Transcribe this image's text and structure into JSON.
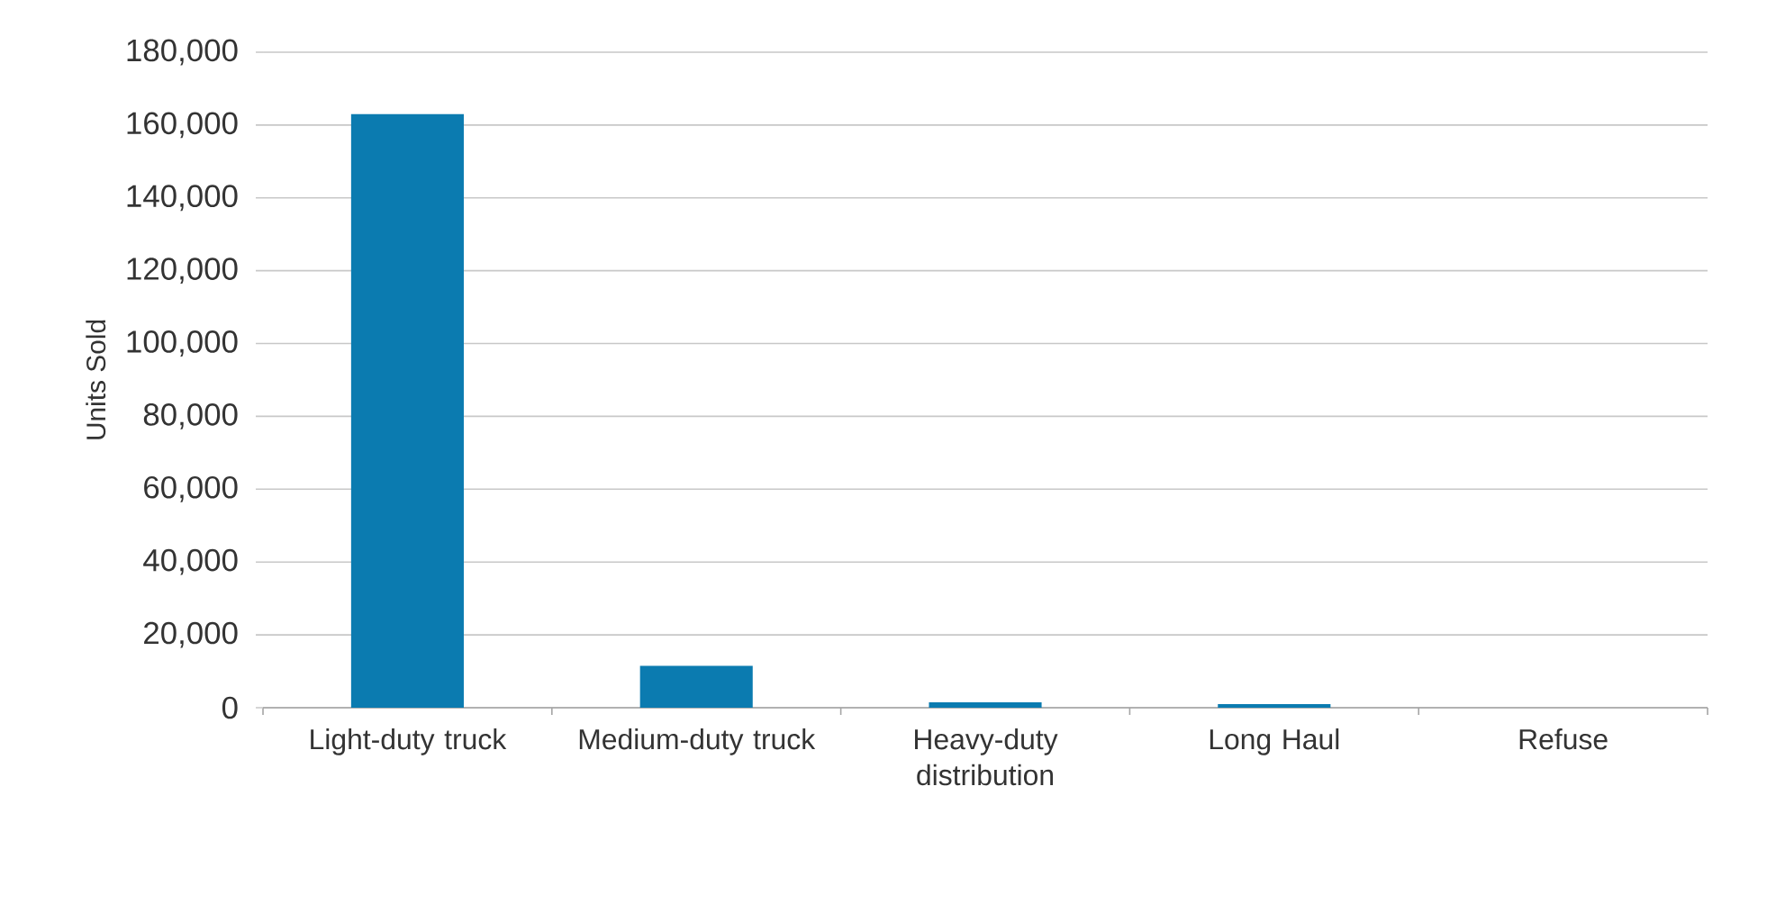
{
  "chart_data": {
    "type": "bar",
    "ylabel": "Units Sold",
    "categories": [
      "Light-duty truck",
      "Medium-duty truck",
      "Heavy-duty distribution",
      "Long Haul",
      "Refuse"
    ],
    "values": [
      163000,
      11500,
      1500,
      1000,
      0
    ],
    "color": "#0b7bb0",
    "ylim": [
      0,
      180000
    ],
    "yticks": [
      {
        "value": 0,
        "label": "0"
      },
      {
        "value": 20000,
        "label": "20,000"
      },
      {
        "value": 40000,
        "label": "40,000"
      },
      {
        "value": 60000,
        "label": "60,000"
      },
      {
        "value": 80000,
        "label": "80,000"
      },
      {
        "value": 100000,
        "label": "100,000"
      },
      {
        "value": 120000,
        "label": "120,000"
      },
      {
        "value": 140000,
        "label": "140,000"
      },
      {
        "value": 160000,
        "label": "160,000"
      },
      {
        "value": 180000,
        "label": "180,000"
      }
    ],
    "grid": "y"
  }
}
